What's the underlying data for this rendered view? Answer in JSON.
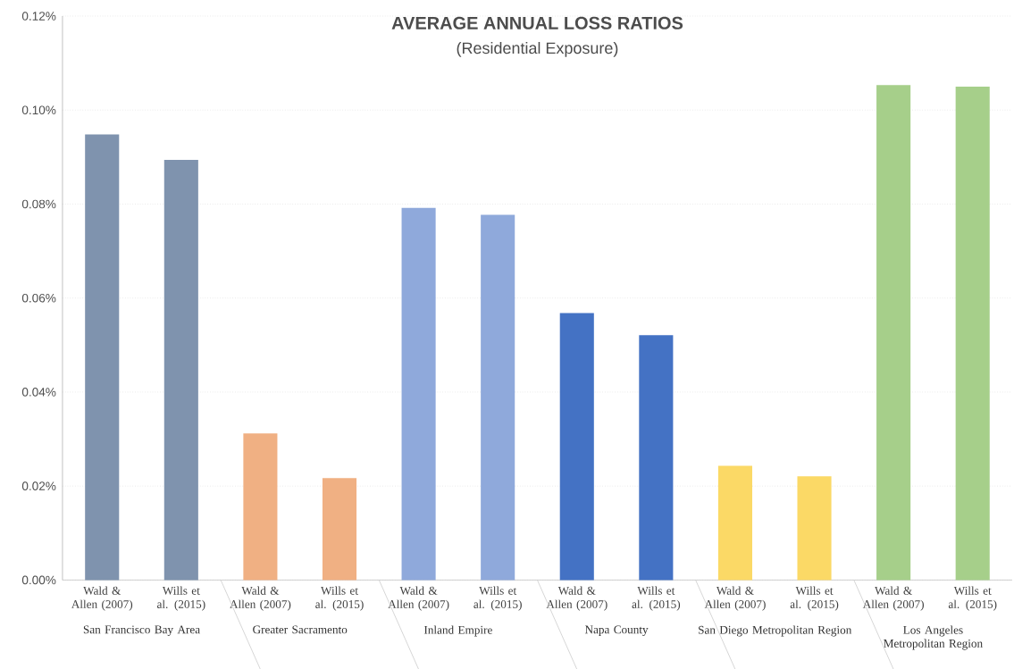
{
  "chart_data": {
    "type": "bar",
    "title": "AVERAGE ANNUAL LOSS RATIOS",
    "subtitle": "(Residential Exposure)",
    "categories": [
      "Wald & Allen (2007)",
      "Wills et al. (2015)",
      "Wald & Allen (2007)",
      "Wills et al. (2015)",
      "Wald & Allen (2007)",
      "Wills et al. (2015)",
      "Wald & Allen (2007)",
      "Wills et al. (2015)",
      "Wald & Allen (2007)",
      "Wills et al. (2015)",
      "Wald & Allen (2007)",
      "Wills et al. (2015)"
    ],
    "values": [
      0.0948,
      0.0894,
      0.0312,
      0.0217,
      0.0792,
      0.0777,
      0.0568,
      0.0521,
      0.0243,
      0.0221,
      0.1053,
      0.105
    ],
    "colors": [
      "#7f93ae",
      "#7f93ae",
      "#f0b083",
      "#f0b083",
      "#8fa9db",
      "#8fa9db",
      "#4472c4",
      "#4472c4",
      "#fbd966",
      "#fbd966",
      "#a6cf8a",
      "#a6cf8a"
    ],
    "ylim": [
      0,
      0.12
    ],
    "yticks": [
      {
        "value": 0,
        "label": "0.00%"
      },
      {
        "value": 0.02,
        "label": "0.02%"
      },
      {
        "value": 0.04,
        "label": "0.04%"
      },
      {
        "value": 0.06,
        "label": "0.06%"
      },
      {
        "value": 0.08,
        "label": "0.08%"
      },
      {
        "value": 0.1,
        "label": "0.10%"
      },
      {
        "value": 0.12,
        "label": "0.12%"
      }
    ],
    "grid": "y",
    "annotations": [
      "San Francisco Bay Area",
      "Greater Sacramento",
      "Inland Empire",
      "Napa County",
      "San Diego Metropolitan Region",
      "Los Angeles Metropolitan Region"
    ]
  }
}
